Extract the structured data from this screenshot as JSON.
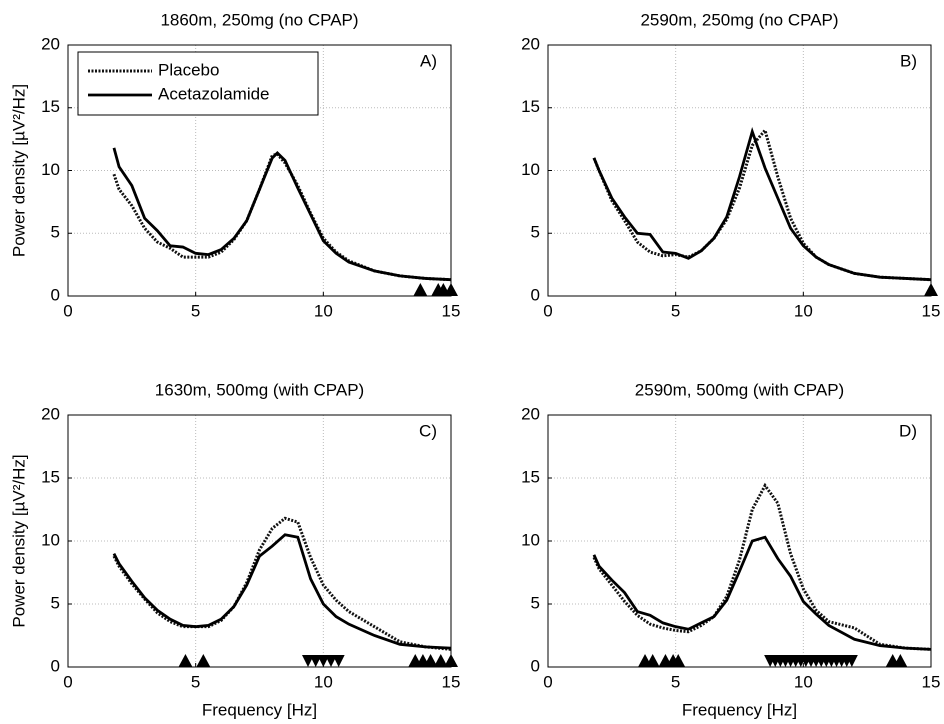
{
  "chart_data": [
    {
      "type": "line",
      "title": "1860m, 250mg (no CPAP)",
      "annotation": "A)",
      "ylabel": "Power density [µV²/Hz]",
      "legend": "upper left",
      "grid": true,
      "x": [
        1.8,
        2,
        2.5,
        3,
        3.5,
        4,
        4.5,
        5,
        5.5,
        6,
        6.5,
        7,
        7.5,
        8,
        8.2,
        8.5,
        9,
        9.5,
        10,
        10.5,
        11,
        12,
        13,
        14,
        15
      ],
      "series": [
        {
          "name": "Placebo",
          "color": "#111111",
          "style": "dotted",
          "values": [
            9.7,
            8.5,
            7.2,
            5.4,
            4.3,
            3.8,
            3.1,
            3.1,
            3.1,
            3.5,
            4.5,
            6.0,
            8.5,
            11.2,
            11.3,
            10.6,
            8.8,
            6.6,
            4.6,
            3.5,
            2.8,
            2.0,
            1.6,
            1.4,
            1.3
          ]
        },
        {
          "name": "Acetazolamide",
          "color": "#000000",
          "style": "solid",
          "values": [
            11.8,
            10.3,
            8.8,
            6.2,
            5.2,
            4.0,
            3.9,
            3.4,
            3.3,
            3.7,
            4.6,
            6.0,
            8.5,
            11.0,
            11.4,
            10.8,
            8.6,
            6.5,
            4.4,
            3.4,
            2.7,
            2.0,
            1.6,
            1.4,
            1.3
          ]
        }
      ],
      "up_markers": [
        13.8,
        14.5,
        14.7,
        15.0
      ],
      "down_markers": [],
      "xlim": [
        0,
        15
      ],
      "ylim": [
        0,
        20
      ],
      "xticks": [
        0,
        5,
        10,
        15
      ],
      "yticks": [
        0,
        5,
        10,
        15,
        20
      ]
    },
    {
      "type": "line",
      "title": "2590m, 250mg (no CPAP)",
      "annotation": "B)",
      "grid": true,
      "x": [
        1.8,
        2,
        2.5,
        3,
        3.5,
        4,
        4.5,
        5,
        5.5,
        6,
        6.5,
        7,
        7.5,
        8,
        8.5,
        9,
        9.5,
        10,
        10.5,
        11,
        12,
        13,
        14,
        15
      ],
      "series": [
        {
          "name": "Placebo",
          "color": "#111111",
          "style": "dotted",
          "values": [
            11.0,
            10.0,
            7.6,
            6.0,
            4.3,
            3.5,
            3.2,
            3.3,
            3.1,
            3.6,
            4.6,
            6.1,
            8.6,
            12.0,
            13.2,
            9.5,
            6.2,
            4.2,
            3.1,
            2.5,
            1.8,
            1.5,
            1.4,
            1.3
          ]
        },
        {
          "name": "Acetazolamide",
          "color": "#000000",
          "style": "solid",
          "values": [
            11.0,
            10.0,
            7.8,
            6.3,
            5.0,
            4.9,
            3.5,
            3.4,
            3.0,
            3.6,
            4.6,
            6.3,
            9.5,
            13.1,
            10.2,
            7.8,
            5.4,
            4.0,
            3.1,
            2.5,
            1.8,
            1.5,
            1.4,
            1.3
          ]
        }
      ],
      "up_markers": [
        15
      ],
      "down_markers": [],
      "xlim": [
        0,
        15
      ],
      "ylim": [
        0,
        20
      ],
      "xticks": [
        0,
        5,
        10,
        15
      ],
      "yticks": [
        0,
        5,
        10,
        15,
        20
      ]
    },
    {
      "type": "line",
      "title": "1630m, 500mg (with CPAP)",
      "annotation": "C)",
      "ylabel": "Power density [µV²/Hz]",
      "xlabel": "Frequency [Hz]",
      "grid": true,
      "x": [
        1.8,
        2,
        2.5,
        3,
        3.5,
        4,
        4.5,
        5,
        5.5,
        6,
        6.5,
        7,
        7.5,
        8,
        8.5,
        9,
        9.5,
        10,
        10.5,
        11,
        12,
        13,
        14,
        15
      ],
      "series": [
        {
          "name": "Placebo",
          "color": "#111111",
          "style": "dotted",
          "values": [
            8.8,
            8.0,
            6.6,
            5.4,
            4.3,
            3.6,
            3.2,
            3.2,
            3.2,
            3.7,
            4.8,
            6.7,
            9.3,
            11.0,
            11.8,
            11.5,
            8.7,
            6.5,
            5.3,
            4.4,
            3.2,
            2.0,
            1.6,
            1.4
          ]
        },
        {
          "name": "Acetazolamide",
          "color": "#000000",
          "style": "solid",
          "values": [
            9.0,
            8.2,
            6.8,
            5.5,
            4.5,
            3.8,
            3.3,
            3.2,
            3.3,
            3.8,
            4.8,
            6.5,
            8.8,
            9.6,
            10.5,
            10.3,
            7.0,
            5.0,
            4.0,
            3.4,
            2.5,
            1.8,
            1.6,
            1.5
          ]
        }
      ],
      "up_markers": [
        4.6,
        5.3,
        13.6,
        13.9,
        14.2,
        14.6,
        15.0
      ],
      "down_markers": [
        9.4,
        9.7,
        10.0,
        10.3,
        10.6
      ],
      "xlim": [
        0,
        15
      ],
      "ylim": [
        0,
        20
      ],
      "xticks": [
        0,
        5,
        10,
        15
      ],
      "yticks": [
        0,
        5,
        10,
        15,
        20
      ]
    },
    {
      "type": "line",
      "title": "2590m, 500mg (with CPAP)",
      "annotation": "D)",
      "xlabel": "Frequency [Hz]",
      "grid": true,
      "x": [
        1.8,
        2,
        2.5,
        3,
        3.5,
        4,
        4.5,
        5,
        5.5,
        6,
        6.5,
        7,
        7.5,
        8,
        8.5,
        9,
        9.5,
        10,
        10.5,
        11,
        12,
        13,
        14,
        15
      ],
      "series": [
        {
          "name": "Placebo",
          "color": "#111111",
          "style": "dotted",
          "values": [
            8.7,
            7.8,
            6.5,
            5.2,
            4.1,
            3.4,
            3.1,
            2.9,
            2.8,
            3.3,
            4.0,
            5.6,
            8.5,
            12.5,
            14.4,
            13.0,
            9.0,
            6.2,
            4.5,
            3.6,
            3.1,
            1.8,
            1.5,
            1.4
          ]
        },
        {
          "name": "Acetazolamide",
          "color": "#000000",
          "style": "solid",
          "values": [
            8.9,
            8.0,
            6.9,
            5.9,
            4.4,
            4.1,
            3.5,
            3.2,
            3.0,
            3.5,
            4.0,
            5.3,
            7.6,
            10.0,
            10.3,
            8.6,
            7.2,
            5.2,
            4.2,
            3.3,
            2.2,
            1.7,
            1.5,
            1.4
          ]
        }
      ],
      "up_markers": [
        3.8,
        4.1,
        4.6,
        4.9,
        5.1,
        13.5,
        13.8
      ],
      "down_markers": [
        8.7,
        8.9,
        9.1,
        9.3,
        9.5,
        9.7,
        9.9,
        10.1,
        10.3,
        10.5,
        10.7,
        10.9,
        11.1,
        11.3,
        11.5,
        11.7,
        11.9
      ],
      "xlim": [
        0,
        15
      ],
      "ylim": [
        0,
        20
      ],
      "xticks": [
        0,
        5,
        10,
        15
      ],
      "yticks": [
        0,
        5,
        10,
        15,
        20
      ]
    }
  ]
}
